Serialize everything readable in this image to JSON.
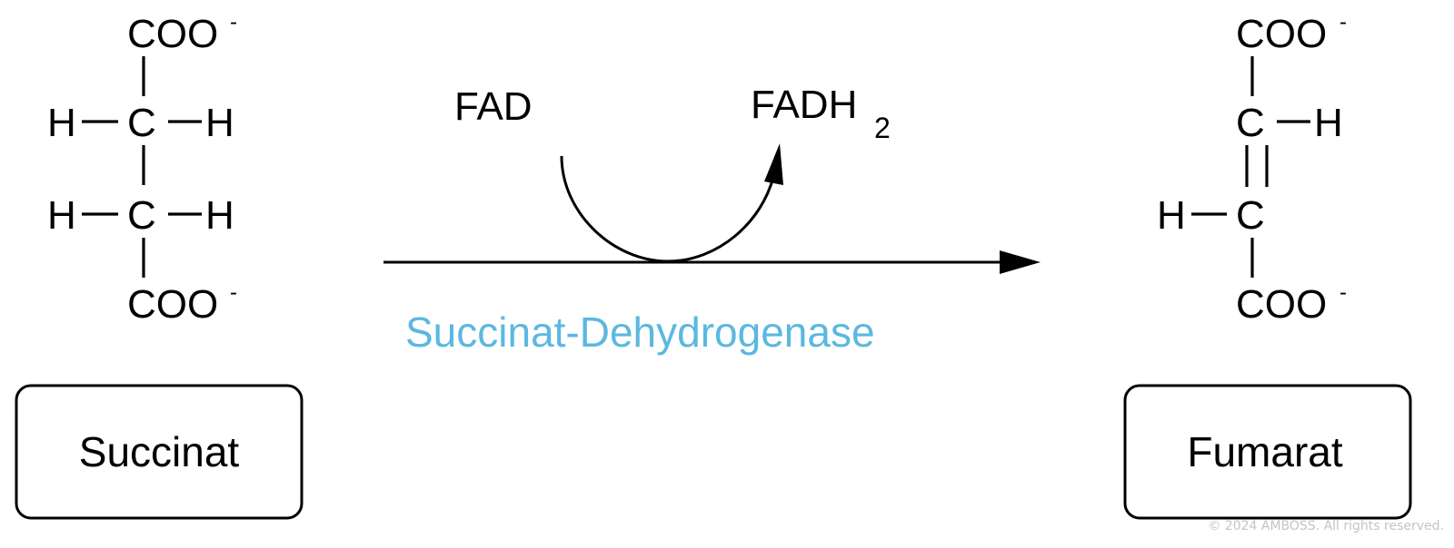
{
  "substrate": {
    "top_group": "COO",
    "top_charge": "-",
    "c1_left": "H",
    "c1": "C",
    "c1_right": "H",
    "c2_left": "H",
    "c2": "C",
    "c2_right": "H",
    "bottom_group": "COO",
    "bottom_charge": "-",
    "label": "Succinat"
  },
  "product": {
    "top_group": "COO",
    "top_charge": "-",
    "c1": "C",
    "c1_right": "H",
    "c2_left": "H",
    "c2": "C",
    "bottom_group": "COO",
    "bottom_charge": "-",
    "label": "Fumarat"
  },
  "cofactor": {
    "input": "FAD",
    "output_main": "FADH",
    "output_subscript": "2"
  },
  "enzyme": {
    "name": "Succinat-Dehydrogenase",
    "color": "#5bb8e0"
  },
  "copyright": "© 2024 AMBOSS. All rights reserved."
}
